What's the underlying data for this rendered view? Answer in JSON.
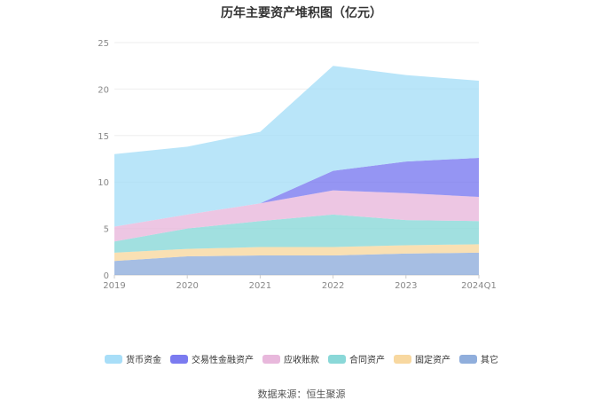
{
  "title": "历年主要资产堆积图（亿元）",
  "source": "数据来源：恒生聚源",
  "chart_data": {
    "type": "area",
    "stacked": true,
    "title": "历年主要资产堆积图（亿元）",
    "categories": [
      "2019",
      "2020",
      "2021",
      "2022",
      "2023",
      "2024Q1"
    ],
    "ylim": [
      0,
      25
    ],
    "yticks": [
      0,
      5,
      10,
      15,
      20,
      25
    ],
    "grid": true,
    "legend_position": "bottom",
    "series": [
      {
        "name": "货币资金",
        "color": "#a8def8",
        "values": [
          7.8,
          7.3,
          7.7,
          11.3,
          9.3,
          8.3
        ]
      },
      {
        "name": "交易性金融资产",
        "color": "#7b7bf0",
        "values": [
          0.0,
          0.0,
          0.0,
          2.1,
          3.4,
          4.2
        ]
      },
      {
        "name": "应收账款",
        "color": "#e8b8dc",
        "values": [
          1.6,
          1.5,
          1.9,
          2.6,
          2.9,
          2.6
        ]
      },
      {
        "name": "合同资产",
        "color": "#8ad8d8",
        "values": [
          1.2,
          2.2,
          2.8,
          3.5,
          2.7,
          2.5
        ]
      },
      {
        "name": "固定资产",
        "color": "#f8d8a0",
        "values": [
          0.9,
          0.8,
          0.9,
          0.9,
          0.9,
          0.9
        ]
      },
      {
        "name": "其它",
        "color": "#90aedc",
        "values": [
          1.5,
          2.0,
          2.1,
          2.1,
          2.3,
          2.4
        ]
      }
    ]
  }
}
